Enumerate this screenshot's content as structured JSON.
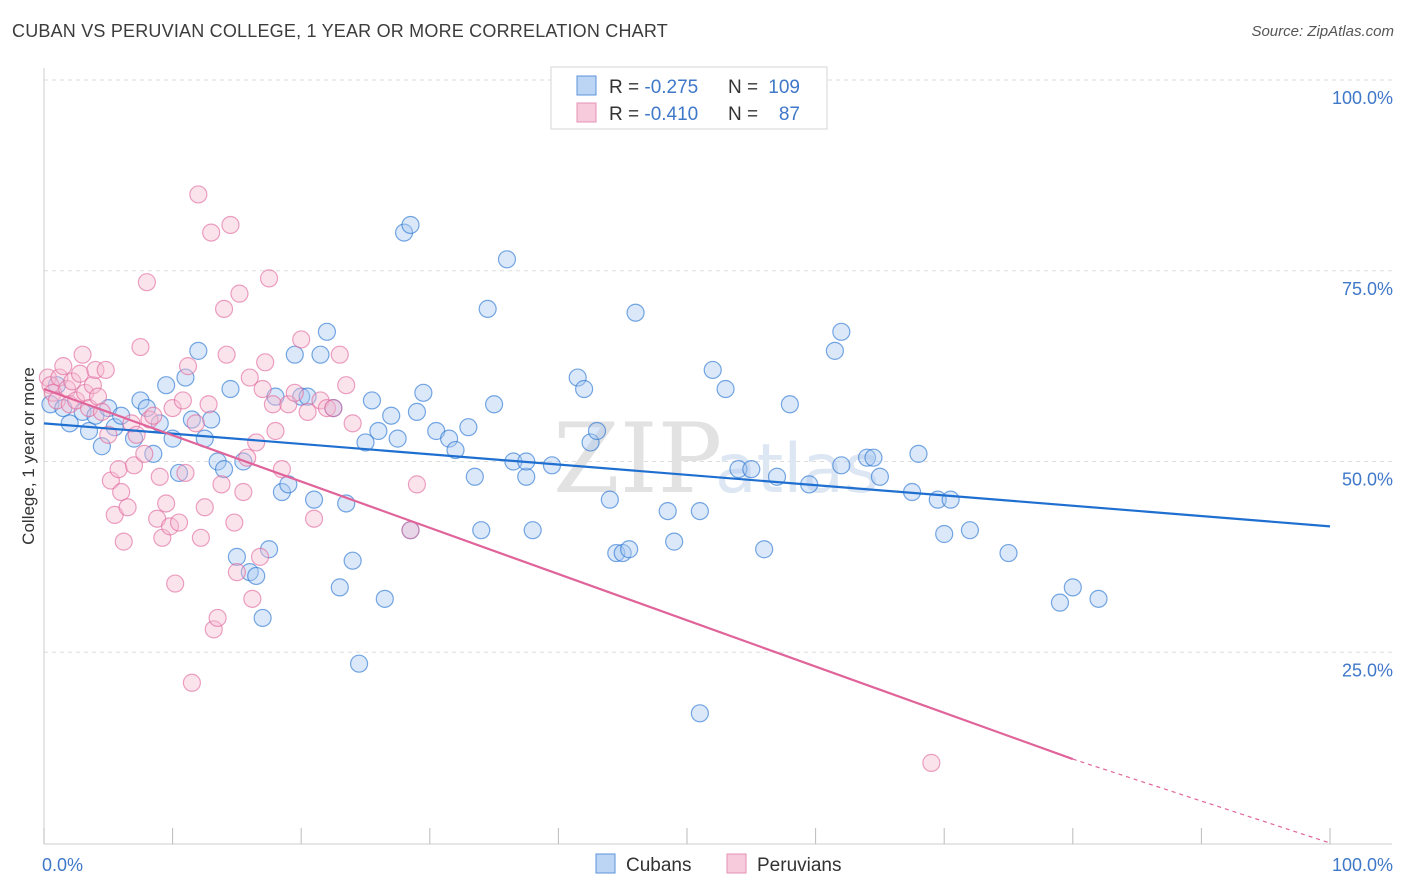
{
  "title": "CUBAN VS PERUVIAN COLLEGE, 1 YEAR OR MORE CORRELATION CHART",
  "source": "Source: ZipAtlas.com",
  "watermark": {
    "zip": "ZIP",
    "atlas": "atlas"
  },
  "colors": {
    "blue": "#1f6fd1",
    "pink": "#e0649a",
    "blue_fill": "#a9c8f0",
    "pink_fill": "#f6bcd2",
    "tick_label": "#3f78c9",
    "grid": "#dddddd"
  },
  "legend": {
    "rows": [
      {
        "r_label": "R = ",
        "r_value": "-0.275",
        "n_label": "N = ",
        "n_value": "109"
      },
      {
        "r_label": "R = ",
        "r_value": "-0.410",
        "n_label": "N = ",
        "n_value": "87"
      }
    ]
  },
  "chart_data": {
    "type": "scatter",
    "title": "CUBAN VS PERUVIAN COLLEGE, 1 YEAR OR MORE CORRELATION CHART",
    "xlabel": "",
    "ylabel": "College, 1 year or more",
    "xlim": [
      0,
      100
    ],
    "ylim": [
      0,
      100
    ],
    "x_tick_labels": [
      {
        "value": 0,
        "label": "0.0%"
      },
      {
        "value": 100,
        "label": "100.0%"
      }
    ],
    "y_tick_labels": [
      {
        "value": 100,
        "label": "100.0%"
      },
      {
        "value": 75,
        "label": "75.0%"
      },
      {
        "value": 50,
        "label": "50.0%"
      },
      {
        "value": 25,
        "label": "25.0%"
      }
    ],
    "grid": true,
    "legend_position": "bottom-center",
    "series": [
      {
        "name": "Cubans",
        "color": "#1f6fd1",
        "trend": {
          "x0": 0,
          "y0": 55.0,
          "x1": 100,
          "y1": 41.5
        },
        "points": [
          [
            0.5,
            57.5
          ],
          [
            1.0,
            60.0
          ],
          [
            1.5,
            57.0
          ],
          [
            2.0,
            55.0
          ],
          [
            3.0,
            56.5
          ],
          [
            3.5,
            54.0
          ],
          [
            4.0,
            56.0
          ],
          [
            4.5,
            52.0
          ],
          [
            5.0,
            57.0
          ],
          [
            5.5,
            54.5
          ],
          [
            6.0,
            56.0
          ],
          [
            7.0,
            53.0
          ],
          [
            7.5,
            58.0
          ],
          [
            8.0,
            57.0
          ],
          [
            8.5,
            51.0
          ],
          [
            9.0,
            55.0
          ],
          [
            9.5,
            60.0
          ],
          [
            10.0,
            53.0
          ],
          [
            10.5,
            48.5
          ],
          [
            11.0,
            61.0
          ],
          [
            11.5,
            55.5
          ],
          [
            12.0,
            64.5
          ],
          [
            12.5,
            53.0
          ],
          [
            13.0,
            55.5
          ],
          [
            13.5,
            50.0
          ],
          [
            14.0,
            49.0
          ],
          [
            14.5,
            59.5
          ],
          [
            15.0,
            37.5
          ],
          [
            15.5,
            50.0
          ],
          [
            16.0,
            35.5
          ],
          [
            16.5,
            35.0
          ],
          [
            17.0,
            29.5
          ],
          [
            17.5,
            38.5
          ],
          [
            18.0,
            58.5
          ],
          [
            18.5,
            46.0
          ],
          [
            19.0,
            47.0
          ],
          [
            19.5,
            64.0
          ],
          [
            20.0,
            58.5
          ],
          [
            20.5,
            58.5
          ],
          [
            21.0,
            45.0
          ],
          [
            21.5,
            64.0
          ],
          [
            22.0,
            67.0
          ],
          [
            22.5,
            57.0
          ],
          [
            23.0,
            33.5
          ],
          [
            23.5,
            44.5
          ],
          [
            24.0,
            37.0
          ],
          [
            24.5,
            23.5
          ],
          [
            25.0,
            52.5
          ],
          [
            25.5,
            58.0
          ],
          [
            26.0,
            54.0
          ],
          [
            26.5,
            32.0
          ],
          [
            27.0,
            56.0
          ],
          [
            27.5,
            53.0
          ],
          [
            28.0,
            80.0
          ],
          [
            28.5,
            81.0
          ],
          [
            28.5,
            41.0
          ],
          [
            29.0,
            56.5
          ],
          [
            29.5,
            59.0
          ],
          [
            30.5,
            54.0
          ],
          [
            31.5,
            53.0
          ],
          [
            32.0,
            51.5
          ],
          [
            33.0,
            54.5
          ],
          [
            33.5,
            48.0
          ],
          [
            34.0,
            41.0
          ],
          [
            34.5,
            70.0
          ],
          [
            35.0,
            57.5
          ],
          [
            36.0,
            76.5
          ],
          [
            36.5,
            50.0
          ],
          [
            37.5,
            48.0
          ],
          [
            37.5,
            50.0
          ],
          [
            38.0,
            41.0
          ],
          [
            39.5,
            49.5
          ],
          [
            41.5,
            61.0
          ],
          [
            42.0,
            59.5
          ],
          [
            42.5,
            52.5
          ],
          [
            43.0,
            54.0
          ],
          [
            44.0,
            45.0
          ],
          [
            44.5,
            38.0
          ],
          [
            45.0,
            38.0
          ],
          [
            45.5,
            38.5
          ],
          [
            46.0,
            69.5
          ],
          [
            48.5,
            43.5
          ],
          [
            49.0,
            39.5
          ],
          [
            51.0,
            43.5
          ],
          [
            52.0,
            62.0
          ],
          [
            53.0,
            59.5
          ],
          [
            54.0,
            49.0
          ],
          [
            55.0,
            49.0
          ],
          [
            56.0,
            38.5
          ],
          [
            57.0,
            48.0
          ],
          [
            58.0,
            57.5
          ],
          [
            59.5,
            47.0
          ],
          [
            61.5,
            64.5
          ],
          [
            62.0,
            67.0
          ],
          [
            62.0,
            49.5
          ],
          [
            64.0,
            50.5
          ],
          [
            64.5,
            50.5
          ],
          [
            65.0,
            48.0
          ],
          [
            67.5,
            46.0
          ],
          [
            68.0,
            51.0
          ],
          [
            69.5,
            45.0
          ],
          [
            70.0,
            40.5
          ],
          [
            70.5,
            45.0
          ],
          [
            72.0,
            41.0
          ],
          [
            75.0,
            38.0
          ],
          [
            79.0,
            31.5
          ],
          [
            80.0,
            33.5
          ],
          [
            82.0,
            32.0
          ],
          [
            51.0,
            17.0
          ]
        ]
      },
      {
        "name": "Peruvians",
        "color": "#e0649a",
        "trend": {
          "x0": 0,
          "y0": 59.5,
          "x1": 80,
          "y1": 11.0
        },
        "trend_dashed": {
          "x0": 80,
          "y0": 11.0,
          "x1": 100,
          "y1": 0.0
        },
        "points": [
          [
            0.3,
            61.0
          ],
          [
            0.5,
            60.0
          ],
          [
            0.7,
            59.0
          ],
          [
            1.0,
            58.0
          ],
          [
            1.2,
            61.0
          ],
          [
            1.5,
            62.5
          ],
          [
            1.8,
            59.5
          ],
          [
            2.0,
            57.5
          ],
          [
            2.2,
            60.5
          ],
          [
            2.5,
            58.0
          ],
          [
            2.8,
            61.5
          ],
          [
            3.0,
            64.0
          ],
          [
            3.2,
            59.0
          ],
          [
            3.5,
            57.0
          ],
          [
            3.8,
            60.0
          ],
          [
            4.0,
            62.0
          ],
          [
            4.2,
            58.5
          ],
          [
            4.5,
            56.5
          ],
          [
            4.8,
            62.0
          ],
          [
            5.0,
            53.5
          ],
          [
            5.2,
            47.5
          ],
          [
            5.5,
            43.0
          ],
          [
            5.8,
            49.0
          ],
          [
            6.0,
            46.0
          ],
          [
            6.2,
            39.5
          ],
          [
            6.5,
            44.0
          ],
          [
            6.8,
            55.0
          ],
          [
            7.0,
            49.5
          ],
          [
            7.2,
            53.5
          ],
          [
            7.5,
            65.0
          ],
          [
            7.8,
            51.0
          ],
          [
            8.0,
            73.5
          ],
          [
            8.2,
            55.5
          ],
          [
            8.5,
            56.0
          ],
          [
            8.8,
            42.5
          ],
          [
            9.0,
            48.0
          ],
          [
            9.2,
            40.0
          ],
          [
            9.5,
            44.5
          ],
          [
            9.8,
            41.5
          ],
          [
            10.0,
            57.0
          ],
          [
            10.2,
            34.0
          ],
          [
            10.5,
            42.0
          ],
          [
            10.8,
            58.0
          ],
          [
            11.0,
            48.5
          ],
          [
            11.2,
            62.5
          ],
          [
            11.5,
            21.0
          ],
          [
            11.8,
            55.0
          ],
          [
            12.0,
            85.0
          ],
          [
            12.2,
            40.0
          ],
          [
            12.5,
            44.0
          ],
          [
            12.8,
            57.5
          ],
          [
            13.0,
            80.0
          ],
          [
            13.2,
            28.0
          ],
          [
            13.5,
            29.5
          ],
          [
            13.8,
            47.0
          ],
          [
            14.0,
            70.0
          ],
          [
            14.2,
            64.0
          ],
          [
            14.5,
            81.0
          ],
          [
            14.8,
            42.0
          ],
          [
            15.0,
            35.5
          ],
          [
            15.2,
            72.0
          ],
          [
            15.5,
            46.0
          ],
          [
            15.8,
            50.5
          ],
          [
            16.0,
            61.0
          ],
          [
            16.2,
            32.0
          ],
          [
            16.5,
            52.5
          ],
          [
            16.8,
            37.5
          ],
          [
            17.0,
            59.5
          ],
          [
            17.2,
            63.0
          ],
          [
            17.5,
            74.0
          ],
          [
            17.8,
            57.5
          ],
          [
            18.0,
            54.0
          ],
          [
            18.5,
            49.0
          ],
          [
            19.0,
            57.5
          ],
          [
            19.5,
            59.0
          ],
          [
            20.0,
            66.0
          ],
          [
            20.5,
            56.5
          ],
          [
            21.0,
            42.5
          ],
          [
            21.5,
            58.0
          ],
          [
            22.0,
            57.0
          ],
          [
            22.5,
            57.0
          ],
          [
            23.0,
            64.0
          ],
          [
            23.5,
            60.0
          ],
          [
            24.0,
            55.0
          ],
          [
            28.5,
            41.0
          ],
          [
            29.0,
            47.0
          ],
          [
            69.0,
            10.5
          ]
        ]
      }
    ]
  }
}
